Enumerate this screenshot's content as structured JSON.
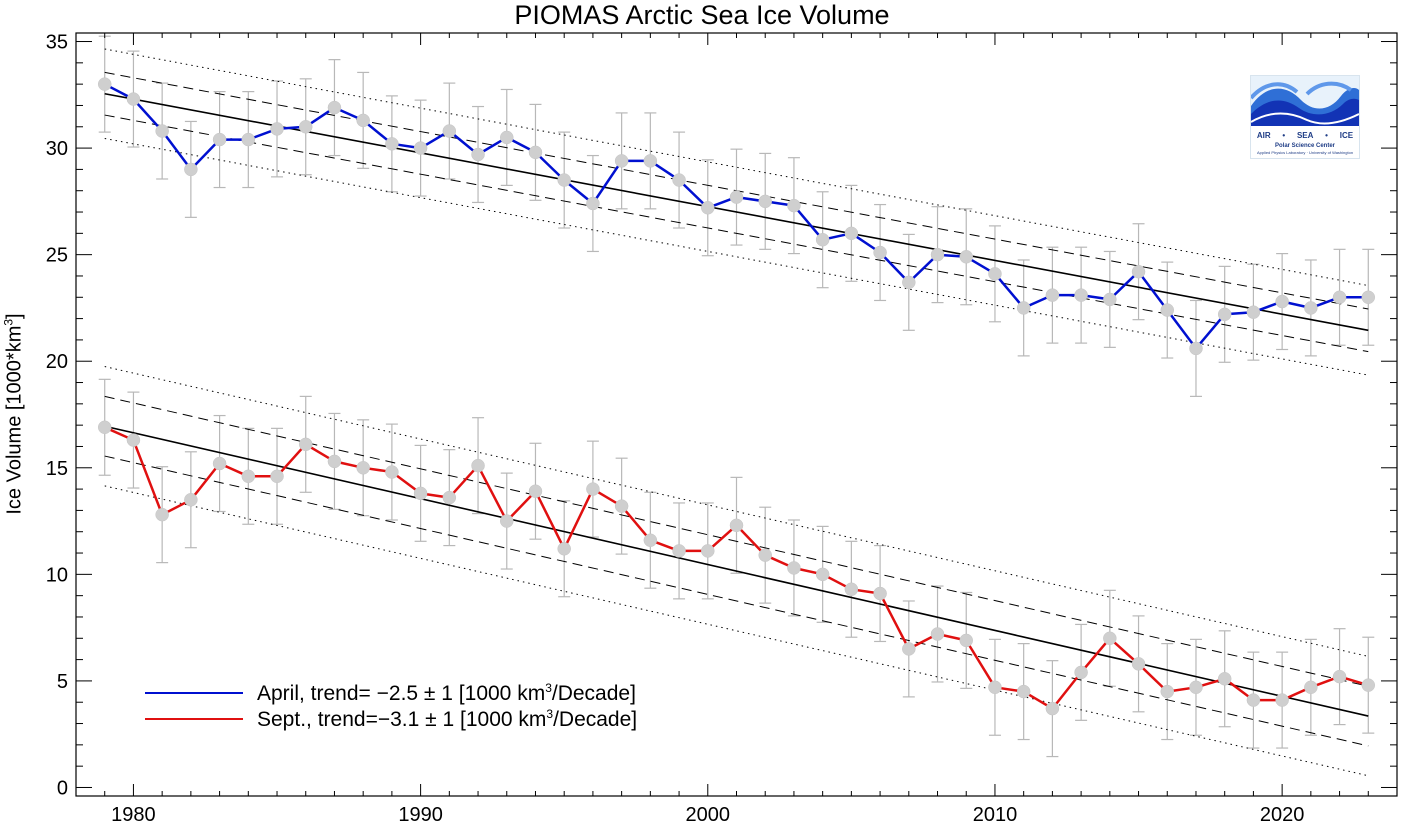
{
  "chart_data": {
    "type": "line",
    "title": "PIOMAS Arctic Sea Ice Volume",
    "ylabel": "Ice Volume [1000*km",
    "ylabel_sup": "3",
    "ylabel_close": "]",
    "xlim": [
      1978,
      2024
    ],
    "ylim": [
      -0.4,
      35.4
    ],
    "xticks": [
      1980,
      1990,
      2000,
      2010,
      2020
    ],
    "yticks": [
      0,
      5,
      10,
      15,
      20,
      25,
      30,
      35
    ],
    "error_bar": 2.25,
    "x": [
      1979,
      1980,
      1981,
      1982,
      1983,
      1984,
      1985,
      1986,
      1987,
      1988,
      1989,
      1990,
      1991,
      1992,
      1993,
      1994,
      1995,
      1996,
      1997,
      1998,
      1999,
      2000,
      2001,
      2002,
      2003,
      2004,
      2005,
      2006,
      2007,
      2008,
      2009,
      2010,
      2011,
      2012,
      2013,
      2014,
      2015,
      2016,
      2017,
      2018,
      2019,
      2020,
      2021,
      2022,
      2023
    ],
    "series": [
      {
        "key": "april",
        "color": "#0010d0",
        "legend_text": "April, trend= −2.5 ± 1 [1000 km",
        "legend_sup": "3",
        "legend_tail": "/Decade]",
        "values": [
          33.0,
          32.3,
          30.8,
          29.0,
          30.4,
          30.4,
          30.9,
          31.0,
          31.9,
          31.3,
          30.2,
          30.0,
          30.8,
          29.7,
          30.5,
          29.8,
          28.5,
          27.4,
          29.4,
          29.4,
          28.5,
          27.2,
          27.7,
          27.5,
          27.3,
          25.7,
          26.0,
          25.1,
          23.7,
          25.0,
          24.9,
          24.1,
          22.5,
          23.1,
          23.1,
          22.9,
          24.2,
          22.4,
          20.6,
          22.2,
          22.3,
          22.8,
          22.5,
          23.0,
          23.0
        ],
        "trend": [
          32.55,
          21.45
        ],
        "band_inner": 1.0,
        "band_outer": 2.1
      },
      {
        "key": "sept",
        "color": "#e01010",
        "legend_text": "Sept., trend=−3.1 ± 1 [1000 km",
        "legend_sup": "3",
        "legend_tail": "/Decade]",
        "values": [
          16.9,
          16.3,
          12.8,
          13.5,
          15.2,
          14.6,
          14.6,
          16.1,
          15.3,
          15.0,
          14.8,
          13.8,
          13.6,
          15.1,
          12.5,
          13.9,
          11.2,
          14.0,
          13.2,
          11.6,
          11.1,
          11.1,
          12.3,
          10.9,
          10.3,
          10.0,
          9.3,
          9.1,
          6.5,
          7.2,
          6.9,
          4.7,
          4.5,
          3.7,
          5.4,
          7.0,
          5.8,
          4.5,
          4.7,
          5.1,
          4.1,
          4.1,
          4.7,
          5.2,
          4.8
        ],
        "trend": [
          16.95,
          3.35
        ],
        "band_inner": 1.4,
        "band_outer": 2.8
      }
    ]
  },
  "logo": {
    "row1": [
      "AIR",
      "•",
      "SEA",
      "•",
      "ICE"
    ],
    "row2": "Polar Science Center",
    "row3": "Applied Physics Laboratory · University of Washington"
  }
}
